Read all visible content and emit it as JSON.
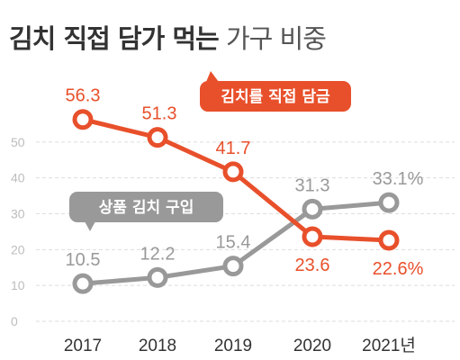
{
  "title": {
    "bold": "김치 직접 담가 먹는",
    "light": " 가구 비중"
  },
  "colors": {
    "direct": "#e8502b",
    "bought": "#999999",
    "grid": "#dddddd",
    "tick": "#bdbdbd",
    "axis_text": "#333333"
  },
  "chart_data": {
    "type": "line",
    "title": "김치 직접 담가 먹는 가구 비중",
    "x": [
      "2017",
      "2018",
      "2019",
      "2020",
      "2021년"
    ],
    "y_ticks": [
      "0",
      "10",
      "20",
      "30",
      "40",
      "50"
    ],
    "ylim": [
      0,
      60
    ],
    "grid": "horizontal",
    "series": [
      {
        "name": "김치를 직접 담금",
        "color": "#e8502b",
        "values": [
          56.3,
          51.3,
          41.7,
          23.6,
          22.6
        ],
        "labels": [
          "56.3",
          "51.3",
          "41.7",
          "23.6",
          "22.6%"
        ]
      },
      {
        "name": "상품 김치 구입",
        "color": "#999999",
        "values": [
          10.5,
          12.2,
          15.4,
          31.3,
          33.1
        ],
        "labels": [
          "10.5",
          "12.2",
          "15.4",
          "31.3",
          "33.1%"
        ]
      }
    ]
  }
}
